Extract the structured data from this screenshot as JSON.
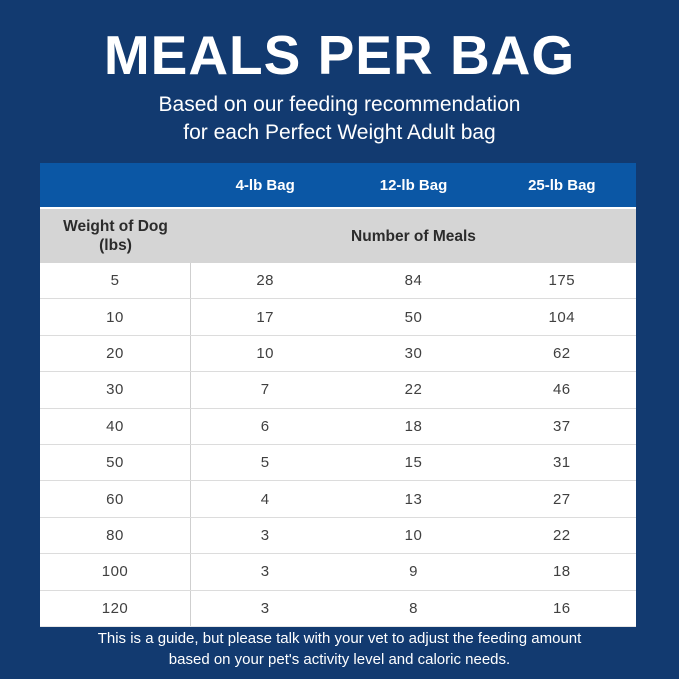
{
  "header": {
    "title": "MEALS PER BAG",
    "subtitle_line1": "Based on our feeding recommendation",
    "subtitle_line2": "for each Perfect Weight Adult bag"
  },
  "footer": {
    "line1": "This is a guide, but please talk with your vet to adjust the feeding amount",
    "line2": "based on your pet's activity level and caloric needs."
  },
  "colors": {
    "background": "#123A70",
    "table_header": "#0B57A5",
    "subheader_row": "#D5D5D5",
    "body_text": "#404040",
    "white": "#FFFFFF"
  },
  "chart_data": {
    "type": "table",
    "title": "MEALS PER BAG",
    "subtitle": "Based on our feeding recommendation for each Perfect Weight Adult bag",
    "column_headers": [
      "",
      "4-lb Bag",
      "12-lb Bag",
      "25-lb Bag"
    ],
    "row_header_label": "Weight of Dog\n(lbs)",
    "value_section_label": "Number of Meals",
    "rows": [
      {
        "weight": 5,
        "meals": [
          28,
          84,
          175
        ]
      },
      {
        "weight": 10,
        "meals": [
          17,
          50,
          104
        ]
      },
      {
        "weight": 20,
        "meals": [
          10,
          30,
          62
        ]
      },
      {
        "weight": 30,
        "meals": [
          7,
          22,
          46
        ]
      },
      {
        "weight": 40,
        "meals": [
          6,
          18,
          37
        ]
      },
      {
        "weight": 50,
        "meals": [
          5,
          15,
          31
        ]
      },
      {
        "weight": 60,
        "meals": [
          4,
          13,
          27
        ]
      },
      {
        "weight": 80,
        "meals": [
          3,
          10,
          22
        ]
      },
      {
        "weight": 100,
        "meals": [
          3,
          9,
          18
        ]
      },
      {
        "weight": 120,
        "meals": [
          3,
          8,
          16
        ]
      }
    ],
    "footnote": "This is a guide, but please talk with your vet to adjust the feeding amount based on your pet's activity level and caloric needs."
  }
}
